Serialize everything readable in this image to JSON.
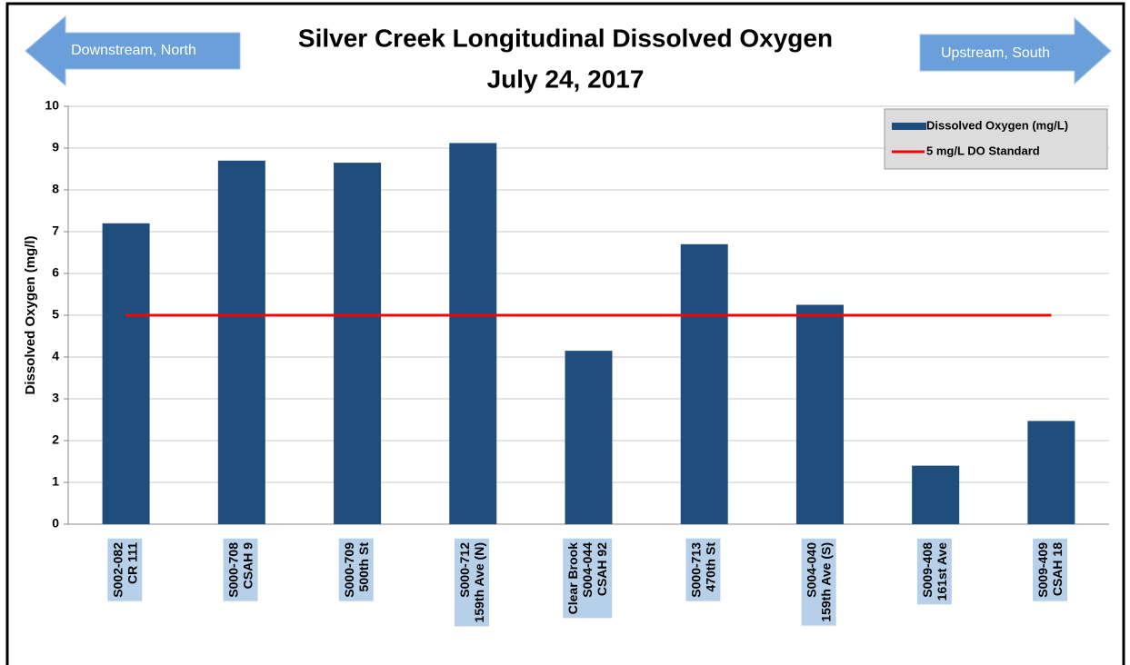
{
  "chart_data": {
    "type": "bar",
    "title": [
      "Silver Creek Longitudinal Dissolved Oxygen",
      "July 24, 2017"
    ],
    "y_label": "Dissolved Oxygen (mg/l)",
    "annotations": {
      "left_arrow": "Downstream, North",
      "right_arrow": "Upstream, South"
    },
    "categories": [
      [
        "S002-082",
        "CR 111"
      ],
      [
        "S000-708",
        "CSAH 9"
      ],
      [
        "S000-709",
        "500th St"
      ],
      [
        "S000-712",
        "159th Ave (N)"
      ],
      [
        "Clear Brook",
        "S004-044",
        "CSAH 92"
      ],
      [
        "S000-713",
        "470th St"
      ],
      [
        "S004-040",
        "159th Ave (S)"
      ],
      [
        "S009-408",
        "161st Ave"
      ],
      [
        "S009-409",
        "CSAH 18"
      ]
    ],
    "series": [
      {
        "name": "Dissolved Oxygen (mg/L)",
        "color": "#1f4e7c",
        "values": [
          7.2,
          8.7,
          8.65,
          9.12,
          4.15,
          6.7,
          5.25,
          1.4,
          2.47
        ]
      }
    ],
    "reference_lines": [
      {
        "name": "5 mg/L DO Standard",
        "value": 5,
        "color": "#ff0000"
      }
    ],
    "ylim": [
      0,
      10
    ],
    "yticks": [
      0,
      1,
      2,
      3,
      4,
      5,
      6,
      7,
      8,
      9,
      10
    ],
    "grid": true,
    "legend": "top-right"
  }
}
